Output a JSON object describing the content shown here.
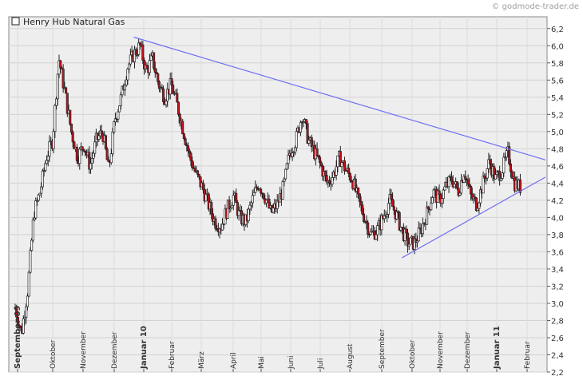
{
  "watermark": "© godmode-trader.de",
  "chart_data": {
    "type": "candlestick",
    "title": "Henry Hub Natural Gas",
    "ylim": [
      2.2,
      6.3
    ],
    "y_ticks": [
      2.2,
      2.4,
      2.6,
      2.8,
      3.0,
      3.2,
      3.4,
      3.6,
      3.8,
      4.0,
      4.2,
      4.4,
      4.6,
      4.8,
      5.0,
      5.2,
      5.4,
      5.6,
      5.8,
      6.0,
      6.2
    ],
    "grid": true,
    "x_labels": [
      {
        "label": "September 09",
        "bold": true
      },
      {
        "label": "Oktober",
        "bold": false
      },
      {
        "label": "November",
        "bold": false
      },
      {
        "label": "Dezember",
        "bold": false
      },
      {
        "label": "Januar 10",
        "bold": true
      },
      {
        "label": "Februar",
        "bold": false
      },
      {
        "label": "März",
        "bold": false
      },
      {
        "label": "April",
        "bold": false
      },
      {
        "label": "Mai",
        "bold": false
      },
      {
        "label": "Juni",
        "bold": false
      },
      {
        "label": "Juli",
        "bold": false
      },
      {
        "label": "August",
        "bold": false
      },
      {
        "label": "September",
        "bold": false
      },
      {
        "label": "Oktober",
        "bold": false
      },
      {
        "label": "November",
        "bold": false
      },
      {
        "label": "Dezember",
        "bold": false
      },
      {
        "label": "Januar 11",
        "bold": true
      },
      {
        "label": "Februar",
        "bold": false
      }
    ],
    "price_path": [
      [
        0,
        2.95
      ],
      [
        1,
        2.65
      ],
      [
        2,
        3.15
      ],
      [
        3,
        4.05
      ],
      [
        4,
        4.3
      ],
      [
        5,
        4.7
      ],
      [
        6,
        4.9
      ],
      [
        7,
        5.85
      ],
      [
        8,
        5.45
      ],
      [
        9,
        5.0
      ],
      [
        10,
        4.7
      ],
      [
        11,
        4.85
      ],
      [
        12,
        4.6
      ],
      [
        13,
        4.9
      ],
      [
        14,
        5.0
      ],
      [
        15,
        4.55
      ],
      [
        16,
        5.15
      ],
      [
        17,
        5.4
      ],
      [
        18,
        5.75
      ],
      [
        19,
        5.9
      ],
      [
        20,
        6.0
      ],
      [
        21,
        5.7
      ],
      [
        22,
        5.85
      ],
      [
        23,
        5.55
      ],
      [
        24,
        5.4
      ],
      [
        25,
        5.55
      ],
      [
        26,
        5.3
      ],
      [
        27,
        5.0
      ],
      [
        28,
        4.7
      ],
      [
        29,
        4.5
      ],
      [
        30,
        4.35
      ],
      [
        31,
        4.15
      ],
      [
        32,
        3.95
      ],
      [
        33,
        3.9
      ],
      [
        34,
        4.1
      ],
      [
        35,
        4.25
      ],
      [
        36,
        4.0
      ],
      [
        37,
        3.95
      ],
      [
        38,
        4.2
      ],
      [
        39,
        4.4
      ],
      [
        40,
        4.25
      ],
      [
        41,
        4.05
      ],
      [
        42,
        4.15
      ],
      [
        43,
        4.35
      ],
      [
        44,
        4.75
      ],
      [
        45,
        4.9
      ],
      [
        46,
        5.2
      ],
      [
        47,
        4.9
      ],
      [
        48,
        4.75
      ],
      [
        49,
        4.6
      ],
      [
        50,
        4.4
      ],
      [
        51,
        4.5
      ],
      [
        52,
        4.7
      ],
      [
        53,
        4.55
      ],
      [
        54,
        4.45
      ],
      [
        55,
        4.2
      ],
      [
        56,
        4.0
      ],
      [
        57,
        3.8
      ],
      [
        58,
        3.85
      ],
      [
        59,
        4.0
      ],
      [
        60,
        4.2
      ],
      [
        61,
        4.05
      ],
      [
        62,
        3.85
      ],
      [
        63,
        3.7
      ],
      [
        64,
        3.7
      ],
      [
        65,
        3.85
      ],
      [
        66,
        4.05
      ],
      [
        67,
        4.3
      ],
      [
        68,
        4.2
      ],
      [
        69,
        4.35
      ],
      [
        70,
        4.45
      ],
      [
        71,
        4.3
      ],
      [
        72,
        4.55
      ],
      [
        73,
        4.25
      ],
      [
        74,
        4.15
      ],
      [
        75,
        4.4
      ],
      [
        76,
        4.65
      ],
      [
        77,
        4.45
      ],
      [
        78,
        4.55
      ],
      [
        79,
        4.75
      ],
      [
        80,
        4.4
      ],
      [
        81,
        4.35
      ]
    ],
    "trendlines": [
      {
        "from": [
          19,
          6.1
        ],
        "to": [
          85,
          4.67
        ]
      },
      {
        "from": [
          62,
          3.53
        ],
        "to": [
          85,
          4.47
        ]
      }
    ]
  }
}
